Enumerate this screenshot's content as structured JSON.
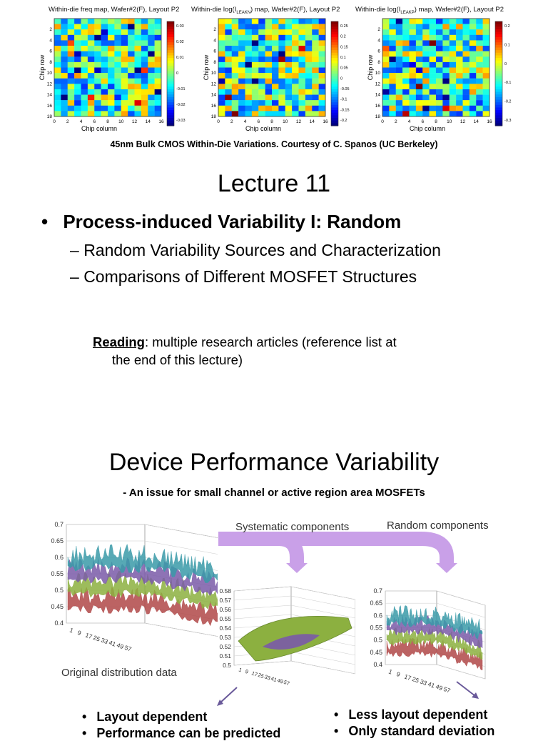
{
  "slide1": {
    "heatmaps": [
      {
        "title": "Within-die freq map, Wafer#2(F), Layout P2",
        "colorbar_ticks": [
          "0.03",
          "0.02",
          "0.01",
          "0",
          "-0.01",
          "-0.02",
          "-0.03"
        ]
      },
      {
        "title_prefix": "Within-die log(I",
        "title_sub": "LEAKN",
        "title_suffix": ") map, Wafer#2(F), Layout P2",
        "colorbar_ticks": [
          "0.25",
          "0.2",
          "0.15",
          "0.1",
          "0.05",
          "0",
          "-0.05",
          "-0.1",
          "-0.15",
          "-0.2"
        ]
      },
      {
        "title_prefix": "Within-die log(I",
        "title_sub": "LEAKP",
        "title_suffix": ") map, Wafer#2(F), Layout P2",
        "colorbar_ticks": [
          "0.2",
          "0.1",
          "0",
          "-0.1",
          "-0.2",
          "-0.3"
        ]
      }
    ],
    "x_axis_label": "Chip column",
    "y_axis_label": "Chip row",
    "x_ticks": [
      "0",
      "2",
      "4",
      "6",
      "8",
      "10",
      "12",
      "14",
      "16"
    ],
    "y_ticks": [
      "2",
      "4",
      "6",
      "8",
      "10",
      "12",
      "14",
      "16",
      "18"
    ],
    "caption": "45nm Bulk CMOS Within-Die Variations. Courtesy of C. Spanos (UC Berkeley)",
    "title": "Lecture 11",
    "bullet": "Process-induced Variability I: Random",
    "bullet_marker": "•",
    "dash": "–",
    "sub_bullets": [
      "Random Variability Sources and Characterization",
      "Comparisons of Different MOSFET Structures"
    ],
    "reading_label": "Reading",
    "reading_line1": ": multiple research articles (reference list at",
    "reading_line2": "the end of this lecture)"
  },
  "slide2": {
    "title": "Device Performance Variability",
    "subtitle": "- An issue for small channel or active region area MOSFETs",
    "label_systematic": "Systematic components",
    "label_random": "Random components",
    "label_original": "Original distribution data",
    "original_y_ticks": [
      "0.7",
      "0.65",
      "0.6",
      "0.55",
      "0.5",
      "0.45",
      "0.4"
    ],
    "systematic_y_ticks": [
      "0.58",
      "0.57",
      "0.56",
      "0.55",
      "0.54",
      "0.53",
      "0.52",
      "0.51",
      "0.5"
    ],
    "random_y_ticks": [
      "0.7",
      "0.65",
      "0.6",
      "0.55",
      "0.5",
      "0.45",
      "0.4"
    ],
    "x_ticks": [
      "1",
      "9",
      "17",
      "25",
      "33",
      "41",
      "49",
      "57"
    ],
    "left_bullets": [
      "Layout dependent",
      "Performance can be predicted"
    ],
    "right_bullets": [
      "Less layout dependent",
      "Only standard deviation"
    ]
  },
  "colors": {
    "arrow": "#c9a0e8",
    "surface_purple": "#7a5aa8",
    "surface_green": "#8cb040",
    "surface_red": "#b04848",
    "surface_teal": "#3a9aa8"
  }
}
